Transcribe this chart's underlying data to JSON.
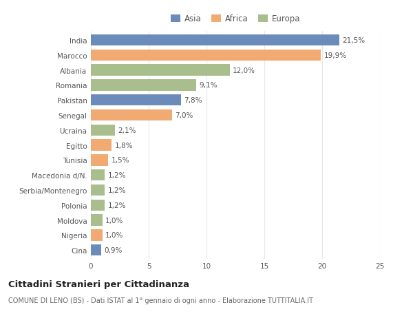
{
  "categories": [
    "India",
    "Marocco",
    "Albania",
    "Romania",
    "Pakistan",
    "Senegal",
    "Ucraina",
    "Egitto",
    "Tunisia",
    "Macedonia d/N.",
    "Serbia/Montenegro",
    "Polonia",
    "Moldova",
    "Nigeria",
    "Cina"
  ],
  "values": [
    21.5,
    19.9,
    12.0,
    9.1,
    7.8,
    7.0,
    2.1,
    1.8,
    1.5,
    1.2,
    1.2,
    1.2,
    1.0,
    1.0,
    0.9
  ],
  "labels": [
    "21,5%",
    "19,9%",
    "12,0%",
    "9,1%",
    "7,8%",
    "7,0%",
    "2,1%",
    "1,8%",
    "1,5%",
    "1,2%",
    "1,2%",
    "1,2%",
    "1,0%",
    "1,0%",
    "0,9%"
  ],
  "continents": [
    "Asia",
    "Africa",
    "Europa",
    "Europa",
    "Asia",
    "Africa",
    "Europa",
    "Africa",
    "Africa",
    "Europa",
    "Europa",
    "Europa",
    "Europa",
    "Africa",
    "Asia"
  ],
  "colors": {
    "Asia": "#6b8cba",
    "Africa": "#f0aa72",
    "Europa": "#a8be8c"
  },
  "legend_labels": [
    "Asia",
    "Africa",
    "Europa"
  ],
  "title": "Cittadini Stranieri per Cittadinanza",
  "subtitle": "COMUNE DI LENO (BS) - Dati ISTAT al 1° gennaio di ogni anno - Elaborazione TUTTITALIA.IT",
  "xlim": [
    0,
    25
  ],
  "xticks": [
    0,
    5,
    10,
    15,
    20,
    25
  ],
  "background_color": "#ffffff",
  "grid_color": "#e8e8e8",
  "bar_height": 0.75,
  "title_fontsize": 9.5,
  "subtitle_fontsize": 7,
  "label_fontsize": 7.5,
  "tick_fontsize": 7.5,
  "legend_fontsize": 8.5
}
